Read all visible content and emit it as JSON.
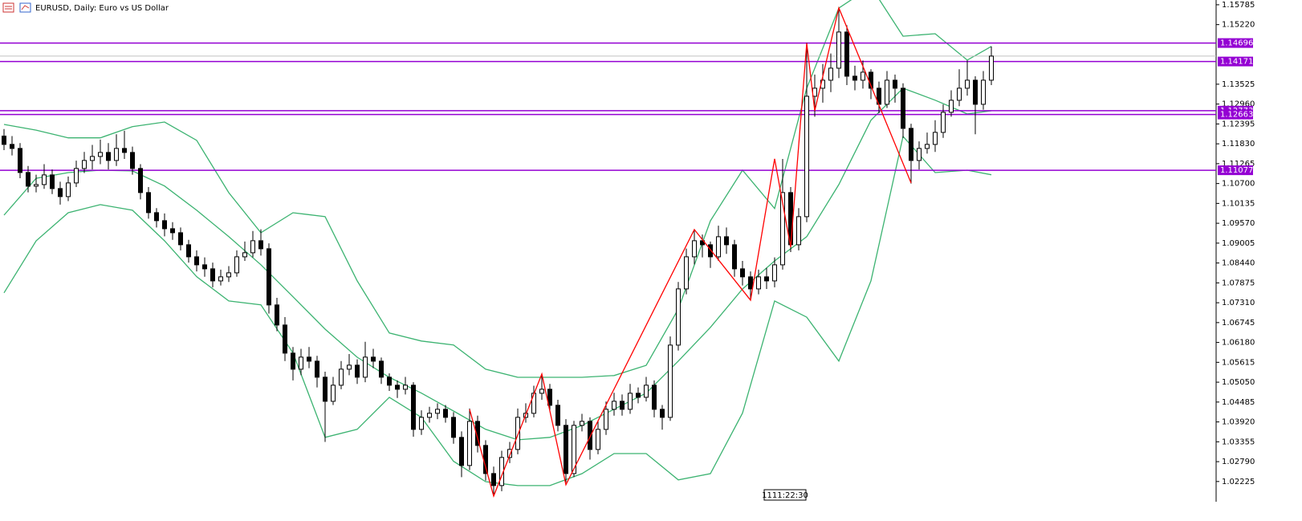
{
  "chart_data": {
    "type": "candlestick",
    "title": "EURUSD, Daily:  Euro vs US Dollar",
    "time_label": "1111:22:30",
    "up_color": "#ffffff",
    "down_color": "#000000",
    "xlim": [
      -0.5,
      151
    ],
    "ylim": [
      1.0165,
      1.1592
    ],
    "yticks": [
      1.15785,
      {
        "value": 1.1522,
        "label": "1.15220"
      },
      1.13525,
      {
        "value": 1.1296,
        "label": "1.12960"
      },
      1.12395,
      {
        "value": 1.1183,
        "label": "1.11830"
      },
      1.11265,
      {
        "value": 1.107,
        "label": "1.10700"
      },
      1.10135,
      {
        "value": 1.0957,
        "label": "1.09570"
      },
      1.09005,
      {
        "value": 1.0844,
        "label": "1.08440"
      },
      1.07875,
      {
        "value": 1.0731,
        "label": "1.07310"
      },
      1.06745,
      {
        "value": 1.0618,
        "label": "1.06180"
      },
      1.05615,
      {
        "value": 1.0505,
        "label": "1.05050"
      },
      1.04485,
      {
        "value": 1.0392,
        "label": "1.03920"
      },
      1.03355,
      {
        "value": 1.0279,
        "label": "1.02790"
      },
      1.02225
    ],
    "open": [
      1.1205,
      1.11813,
      1.11698,
      1.11014,
      1.10625,
      1.10671,
      1.10945,
      1.10557,
      1.10329,
      1.10717,
      1.11128,
      1.11356,
      1.1147,
      1.11584,
      1.11356,
      1.11698,
      1.11584,
      1.11128,
      1.10443,
      1.09872,
      1.09644,
      1.09415,
      1.09301,
      1.08959,
      1.08616,
      1.08388,
      1.08274,
      1.07931,
      1.08046,
      1.0816,
      1.08616,
      1.08731,
      1.09073,
      1.08845,
      1.07247,
      1.06676,
      1.05877,
      1.0542,
      1.05763,
      1.05648,
      1.05192,
      1.04507,
      1.04964,
      1.0542,
      1.05534,
      1.05192,
      1.05763,
      1.05648,
      1.05192,
      1.04964,
      1.04849,
      1.04964,
      1.03708,
      1.0405,
      1.04165,
      1.04279,
      1.0405,
      1.0348,
      1.02681,
      1.03936,
      1.03251,
      1.02452,
      1.0211,
      1.02909,
      1.03137,
      1.0405,
      1.04165,
      1.04735,
      1.04849,
      1.04393,
      1.03822,
      1.02452,
      1.03822,
      1.03936,
      1.03137,
      1.03708,
      1.04279,
      1.04507,
      1.04279,
      1.04735,
      1.04621,
      1.04964,
      1.04279,
      1.0405,
      1.06105,
      1.07703,
      1.08616,
      1.09073,
      1.08959,
      1.08616,
      1.09187,
      1.08959,
      1.08274,
      1.08046,
      1.07703,
      1.08046,
      1.07931,
      1.08388,
      1.10443,
      1.08959,
      1.09758,
      1.13182,
      1.13411,
      1.13639,
      1.13981,
      1.15009,
      1.13753,
      1.13639,
      1.13867,
      1.13411,
      1.12954,
      1.13639,
      1.13411,
      1.12269,
      1.11356,
      1.11698,
      1.11813,
      1.12155,
      1.12726,
      1.13068,
      1.13411,
      1.13639,
      1.12954,
      1.13639
    ],
    "close": [
      1.11813,
      1.11698,
      1.11014,
      1.10625,
      1.10671,
      1.10945,
      1.10557,
      1.10329,
      1.10717,
      1.11128,
      1.11356,
      1.1147,
      1.11584,
      1.11356,
      1.11698,
      1.11584,
      1.11128,
      1.10443,
      1.09872,
      1.09644,
      1.09415,
      1.09301,
      1.08959,
      1.08616,
      1.08388,
      1.08274,
      1.07931,
      1.08046,
      1.0816,
      1.08616,
      1.08731,
      1.09073,
      1.08845,
      1.07247,
      1.06676,
      1.05877,
      1.0542,
      1.05763,
      1.05648,
      1.05192,
      1.04507,
      1.04964,
      1.0542,
      1.05534,
      1.05192,
      1.05763,
      1.05648,
      1.05192,
      1.04964,
      1.04849,
      1.04964,
      1.03708,
      1.0405,
      1.04165,
      1.04279,
      1.0405,
      1.0348,
      1.02681,
      1.03936,
      1.03251,
      1.02452,
      1.0211,
      1.02909,
      1.03137,
      1.0405,
      1.04165,
      1.04735,
      1.04849,
      1.04393,
      1.03822,
      1.02452,
      1.03822,
      1.03936,
      1.03137,
      1.03708,
      1.04279,
      1.04507,
      1.04279,
      1.04735,
      1.04621,
      1.04964,
      1.04279,
      1.0405,
      1.06105,
      1.07703,
      1.08616,
      1.09073,
      1.08959,
      1.08616,
      1.09187,
      1.08959,
      1.08274,
      1.08046,
      1.07703,
      1.08046,
      1.07931,
      1.08388,
      1.10443,
      1.08959,
      1.09758,
      1.13182,
      1.13411,
      1.13639,
      1.13981,
      1.15009,
      1.13753,
      1.13639,
      1.13867,
      1.13411,
      1.12954,
      1.13639,
      1.13411,
      1.12269,
      1.11356,
      1.11698,
      1.11813,
      1.12155,
      1.12726,
      1.13068,
      1.13411,
      1.13639,
      1.12954,
      1.13639,
      1.14324
    ],
    "high": [
      1.1225,
      1.1205,
      1.1185,
      1.112,
      1.1095,
      1.1125,
      1.111,
      1.1075,
      1.109,
      1.1135,
      1.116,
      1.118,
      1.1195,
      1.1185,
      1.121,
      1.122,
      1.1175,
      1.1125,
      1.106,
      1.1,
      1.0985,
      1.096,
      1.0945,
      1.091,
      1.088,
      1.086,
      1.0845,
      1.0825,
      1.0835,
      1.088,
      1.0905,
      1.0935,
      1.094,
      1.09,
      1.0745,
      1.069,
      1.0605,
      1.06,
      1.0605,
      1.058,
      1.0535,
      1.052,
      1.0565,
      1.0585,
      1.057,
      1.062,
      1.06,
      1.0575,
      1.053,
      1.051,
      1.052,
      1.0505,
      1.0425,
      1.0435,
      1.0445,
      1.044,
      1.042,
      1.0365,
      1.043,
      1.041,
      1.034,
      1.0265,
      1.031,
      1.0335,
      1.043,
      1.0445,
      1.0495,
      1.053,
      1.05,
      1.0455,
      1.04,
      1.0395,
      1.0415,
      1.0405,
      1.0395,
      1.045,
      1.0475,
      1.047,
      1.05,
      1.049,
      1.052,
      1.051,
      1.044,
      1.0635,
      1.079,
      1.0885,
      1.094,
      1.0925,
      1.0905,
      1.095,
      1.0945,
      1.091,
      1.085,
      1.082,
      1.0825,
      1.083,
      1.086,
      1.114,
      1.106,
      1.1,
      1.147,
      1.138,
      1.141,
      1.144,
      1.157,
      1.152,
      1.1405,
      1.142,
      1.1395,
      1.136,
      1.139,
      1.138,
      1.1355,
      1.124,
      1.119,
      1.1215,
      1.125,
      1.1295,
      1.1335,
      1.1395,
      1.142,
      1.1375,
      1.139,
      1.146
    ],
    "low": [
      1.1165,
      1.115,
      1.1085,
      1.1045,
      1.1045,
      1.1055,
      1.104,
      1.101,
      1.102,
      1.106,
      1.11,
      1.111,
      1.1125,
      1.111,
      1.112,
      1.114,
      1.1095,
      1.1025,
      1.097,
      1.0945,
      1.092,
      1.091,
      1.088,
      1.0845,
      1.082,
      1.0805,
      1.0775,
      1.078,
      1.079,
      1.0805,
      1.085,
      1.086,
      1.0865,
      1.07,
      1.065,
      1.0565,
      1.051,
      1.0525,
      1.0545,
      1.049,
      1.0335,
      1.044,
      1.0485,
      1.0525,
      1.05,
      1.0505,
      1.0545,
      1.05,
      1.048,
      1.046,
      1.047,
      1.035,
      1.0355,
      1.039,
      1.04,
      1.039,
      1.033,
      1.0235,
      1.0255,
      1.0305,
      1.0225,
      1.018,
      1.0195,
      1.0275,
      1.03,
      1.039,
      1.0405,
      1.0455,
      1.0425,
      1.0365,
      1.022,
      1.0235,
      1.0365,
      1.0285,
      1.03,
      1.0355,
      1.041,
      1.041,
      1.0415,
      1.0445,
      1.045,
      1.0405,
      1.037,
      1.0395,
      1.0595,
      1.0755,
      1.084,
      1.086,
      1.083,
      1.085,
      1.087,
      1.0805,
      1.078,
      1.074,
      1.0755,
      1.077,
      1.0775,
      1.0825,
      1.0875,
      1.088,
      1.096,
      1.126,
      1.13,
      1.133,
      1.137,
      1.135,
      1.1335,
      1.134,
      1.131,
      1.127,
      1.1285,
      1.13,
      1.12,
      1.107,
      1.111,
      1.1155,
      1.116,
      1.12,
      1.126,
      1.129,
      1.132,
      1.121,
      1.128,
      1.135
    ],
    "bands": [
      {
        "color": "#3cb371",
        "x": [
          0,
          4,
          8,
          12,
          16,
          20,
          24,
          28,
          32,
          36,
          40,
          44,
          48,
          52,
          56,
          60,
          64,
          68,
          72,
          76,
          80,
          84,
          88,
          92,
          96,
          100,
          104,
          108,
          112,
          116,
          120,
          123
        ],
        "values": [
          1.1238,
          1.1222,
          1.12,
          1.12,
          1.1232,
          1.1245,
          1.1193,
          1.1044,
          1.093,
          1.0987,
          1.0976,
          1.0793,
          1.0645,
          1.0622,
          1.0611,
          1.0542,
          1.0519,
          1.0519,
          1.0519,
          1.0524,
          1.0553,
          1.0713,
          1.0964,
          1.1108,
          1.0999,
          1.1341,
          1.1569,
          1.163,
          1.1489,
          1.1496,
          1.1421,
          1.146
        ]
      },
      {
        "color": "#3cb371",
        "x": [
          0,
          4,
          8,
          12,
          16,
          20,
          24,
          28,
          32,
          36,
          40,
          44,
          48,
          52,
          56,
          60,
          64,
          68,
          72,
          76,
          80,
          84,
          88,
          92,
          96,
          100,
          104,
          108,
          112,
          116,
          120,
          123
        ],
        "values": [
          1.098,
          1.1085,
          1.1101,
          1.1108,
          1.1106,
          1.1063,
          1.0994,
          1.0919,
          1.0839,
          1.0748,
          1.0656,
          1.0576,
          1.0519,
          1.0474,
          1.0423,
          1.0371,
          1.0341,
          1.0348,
          1.0382,
          1.0428,
          1.0474,
          1.0565,
          1.0661,
          1.077,
          1.085,
          1.0919,
          1.1067,
          1.125,
          1.1341,
          1.1307,
          1.1268,
          1.1277
        ]
      },
      {
        "color": "#3cb371",
        "x": [
          0,
          4,
          8,
          12,
          16,
          20,
          24,
          28,
          32,
          36,
          40,
          44,
          48,
          52,
          56,
          60,
          64,
          68,
          72,
          76,
          80,
          84,
          88,
          92,
          96,
          100,
          104,
          108,
          112,
          116,
          120,
          123
        ],
        "values": [
          1.0759,
          1.0907,
          1.0987,
          1.101,
          1.0994,
          1.0907,
          1.0805,
          1.0736,
          1.0725,
          1.0588,
          1.0348,
          1.0371,
          1.0462,
          1.0405,
          1.028,
          1.0222,
          1.0211,
          1.0211,
          1.0245,
          1.0302,
          1.0302,
          1.0227,
          1.0245,
          1.0417,
          1.0736,
          1.069,
          1.0565,
          1.0793,
          1.1204,
          1.1101,
          1.1108,
          1.1095
        ]
      }
    ],
    "zigzag": {
      "color": "#ff0000",
      "x": [
        58,
        61,
        67,
        70,
        86,
        93,
        96,
        98,
        100,
        101,
        104,
        113
      ],
      "values": [
        1.04279,
        1.01813,
        1.05283,
        1.02133,
        1.09393,
        1.07384,
        1.11402,
        1.0889,
        1.14689,
        1.12771,
        1.15694,
        1.10717
      ]
    },
    "levels": {
      "color": "#9400d3",
      "values": [
        1.14696,
        1.14171,
        1.12773,
        1.12663,
        1.11077
      ]
    }
  }
}
